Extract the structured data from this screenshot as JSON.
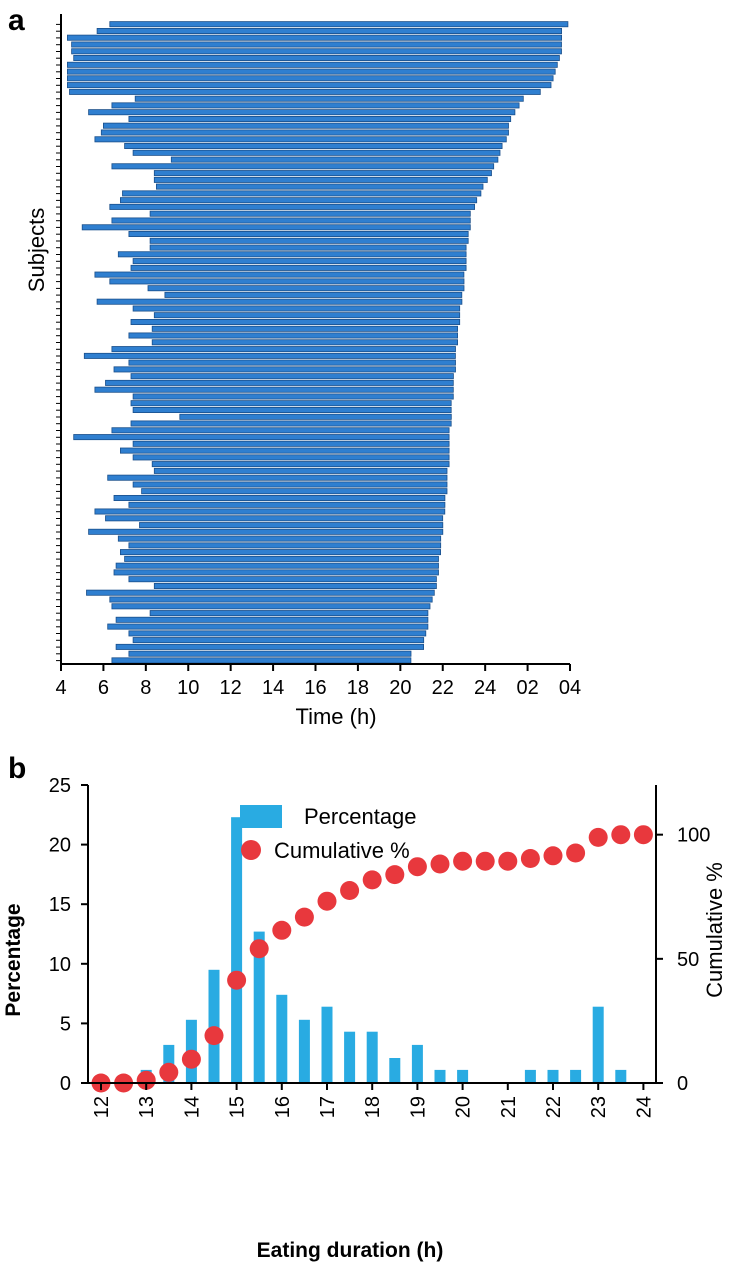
{
  "panel_a": {
    "letter": "a",
    "ylabel": "Subjects",
    "xlabel": "Time (h)",
    "x_ticks": [
      "4",
      "6",
      "8",
      "10",
      "12",
      "14",
      "16",
      "18",
      "20",
      "22",
      "24",
      "02",
      "04"
    ]
  },
  "panel_b": {
    "letter": "b",
    "xlabel": "Eating duration (h)",
    "ylabel_left": "Percentage",
    "ylabel_right": "Cumulative %",
    "y_left_ticks": [
      "0",
      "5",
      "10",
      "15",
      "20",
      "25"
    ],
    "y_right_ticks": [
      "0",
      "50",
      "100"
    ],
    "x_ticks": [
      "12",
      "13",
      "14",
      "15",
      "16",
      "17",
      "18",
      "19",
      "20",
      "21",
      "22",
      "23",
      "24"
    ],
    "legend_bar": "Percentage",
    "legend_dot": "Cumulative %"
  },
  "colors": {
    "bar_a": "#2f7fd0",
    "bar_a_edge": "#1b4f8a",
    "bar_b": "#29abe2",
    "dot_b": "#e8383d"
  },
  "chart_data": [
    {
      "type": "bar",
      "orientation": "horizontal-range",
      "xlabel": "Time (h)",
      "ylabel": "Subjects",
      "xlim": [
        4,
        28
      ],
      "x_tick_values": [
        4,
        6,
        8,
        10,
        12,
        14,
        16,
        18,
        20,
        22,
        24,
        26,
        28
      ],
      "intervals": [
        [
          6.3,
          27.9
        ],
        [
          5.7,
          27.6
        ],
        [
          4.3,
          27.6
        ],
        [
          4.5,
          27.6
        ],
        [
          4.5,
          27.6
        ],
        [
          4.6,
          27.5
        ],
        [
          4.3,
          27.4
        ],
        [
          4.3,
          27.3
        ],
        [
          4.3,
          27.2
        ],
        [
          4.3,
          27.1
        ],
        [
          4.4,
          26.6
        ],
        [
          7.5,
          25.8
        ],
        [
          6.4,
          25.6
        ],
        [
          5.3,
          25.4
        ],
        [
          7.2,
          25.2
        ],
        [
          6.0,
          25.1
        ],
        [
          5.9,
          25.1
        ],
        [
          5.6,
          25.0
        ],
        [
          7.0,
          24.8
        ],
        [
          7.4,
          24.7
        ],
        [
          9.2,
          24.6
        ],
        [
          6.4,
          24.4
        ],
        [
          8.4,
          24.3
        ],
        [
          8.4,
          24.1
        ],
        [
          8.5,
          23.9
        ],
        [
          6.9,
          23.8
        ],
        [
          6.8,
          23.6
        ],
        [
          6.3,
          23.5
        ],
        [
          8.2,
          23.3
        ],
        [
          6.4,
          23.3
        ],
        [
          5.0,
          23.3
        ],
        [
          7.2,
          23.2
        ],
        [
          8.2,
          23.2
        ],
        [
          8.2,
          23.1
        ],
        [
          6.7,
          23.1
        ],
        [
          7.4,
          23.1
        ],
        [
          7.3,
          23.1
        ],
        [
          5.6,
          23.0
        ],
        [
          6.3,
          23.0
        ],
        [
          8.1,
          23.0
        ],
        [
          8.9,
          22.9
        ],
        [
          5.7,
          22.9
        ],
        [
          7.4,
          22.8
        ],
        [
          8.4,
          22.8
        ],
        [
          7.3,
          22.8
        ],
        [
          8.3,
          22.7
        ],
        [
          7.2,
          22.7
        ],
        [
          8.3,
          22.7
        ],
        [
          6.4,
          22.6
        ],
        [
          5.1,
          22.6
        ],
        [
          7.2,
          22.6
        ],
        [
          6.5,
          22.6
        ],
        [
          7.3,
          22.5
        ],
        [
          6.1,
          22.5
        ],
        [
          5.6,
          22.5
        ],
        [
          7.4,
          22.5
        ],
        [
          7.3,
          22.4
        ],
        [
          7.4,
          22.4
        ],
        [
          9.6,
          22.4
        ],
        [
          7.3,
          22.4
        ],
        [
          6.4,
          22.3
        ],
        [
          4.6,
          22.3
        ],
        [
          7.4,
          22.3
        ],
        [
          6.8,
          22.3
        ],
        [
          7.4,
          22.3
        ],
        [
          8.3,
          22.3
        ],
        [
          8.4,
          22.2
        ],
        [
          6.2,
          22.2
        ],
        [
          7.4,
          22.2
        ],
        [
          7.8,
          22.2
        ],
        [
          6.5,
          22.1
        ],
        [
          7.2,
          22.1
        ],
        [
          5.6,
          22.1
        ],
        [
          6.1,
          22.0
        ],
        [
          7.7,
          22.0
        ],
        [
          5.3,
          22.0
        ],
        [
          6.7,
          21.9
        ],
        [
          7.2,
          21.9
        ],
        [
          6.8,
          21.9
        ],
        [
          7.0,
          21.8
        ],
        [
          6.6,
          21.8
        ],
        [
          6.5,
          21.8
        ],
        [
          7.2,
          21.7
        ],
        [
          8.4,
          21.7
        ],
        [
          5.2,
          21.6
        ],
        [
          6.3,
          21.5
        ],
        [
          6.4,
          21.4
        ],
        [
          8.2,
          21.3
        ],
        [
          6.6,
          21.3
        ],
        [
          6.2,
          21.3
        ],
        [
          7.2,
          21.2
        ],
        [
          7.4,
          21.1
        ],
        [
          6.6,
          21.1
        ],
        [
          7.2,
          20.5
        ],
        [
          6.4,
          20.5
        ]
      ]
    },
    {
      "type": "bar",
      "xlabel": "Eating duration (h)",
      "ylabel": "Percentage",
      "ylim": [
        0,
        25
      ],
      "y2label": "Cumulative %",
      "y2lim": [
        0,
        120
      ],
      "x_tick_values": [
        12,
        13,
        14,
        15,
        16,
        17,
        18,
        19,
        20,
        21,
        22,
        23,
        24
      ],
      "series": [
        {
          "name": "Percentage",
          "type": "bar",
          "x": [
            13,
            13.5,
            14,
            14.5,
            15,
            15.5,
            16,
            16.5,
            17,
            17.5,
            18,
            18.5,
            19,
            19.5,
            20,
            21.5,
            22,
            22.5,
            23,
            23.5
          ],
          "values": [
            1.1,
            3.2,
            5.3,
            9.5,
            22.3,
            12.7,
            7.4,
            5.3,
            6.4,
            4.3,
            4.3,
            2.1,
            3.2,
            1.1,
            1.1,
            1.1,
            1.1,
            1.1,
            6.4,
            1.1
          ]
        },
        {
          "name": "Cumulative %",
          "type": "scatter",
          "axis": "right",
          "x": [
            12,
            12.5,
            13,
            13.5,
            14,
            14.5,
            15,
            15.5,
            16,
            16.5,
            17,
            17.5,
            18,
            18.5,
            19,
            19.5,
            20,
            20.5,
            21,
            21.5,
            22,
            22.5,
            23,
            23.5,
            24
          ],
          "values": [
            0,
            0,
            1.1,
            4.3,
            9.6,
            19.1,
            41.4,
            54.1,
            61.5,
            66.8,
            73.2,
            77.5,
            81.8,
            83.9,
            87.1,
            88.2,
            89.3,
            89.3,
            89.3,
            90.4,
            91.5,
            92.6,
            98.9,
            100,
            100
          ]
        }
      ]
    }
  ]
}
